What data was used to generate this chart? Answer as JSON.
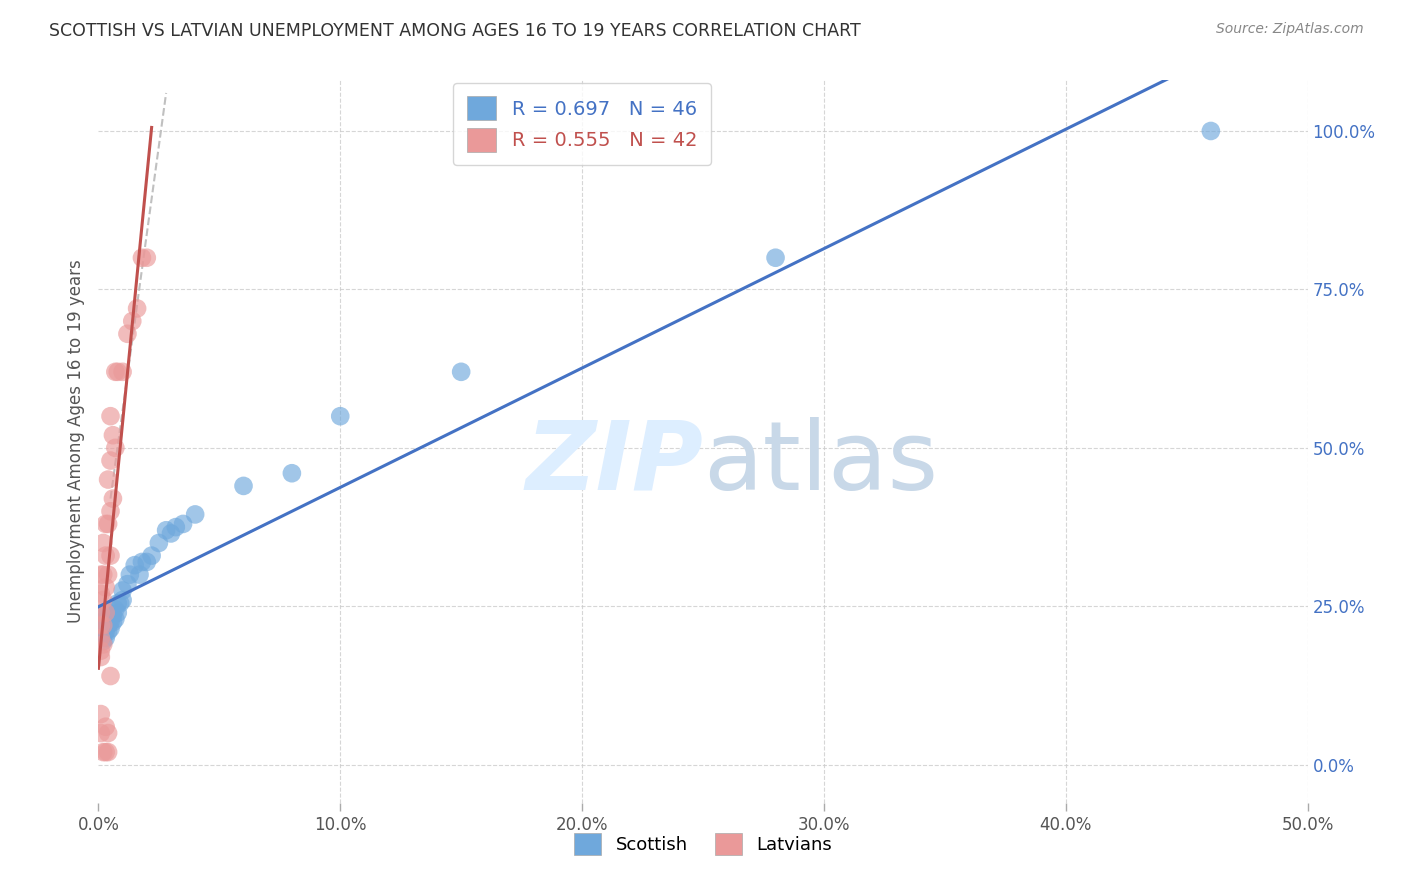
{
  "title": "SCOTTISH VS LATVIAN UNEMPLOYMENT AMONG AGES 16 TO 19 YEARS CORRELATION CHART",
  "source": "Source: ZipAtlas.com",
  "ylabel": "Unemployment Among Ages 16 to 19 years",
  "xlim": [
    0.0,
    0.5
  ],
  "ylim": [
    0.0,
    1.05
  ],
  "x_ticks": [
    0.0,
    0.1,
    0.2,
    0.3,
    0.4,
    0.5
  ],
  "x_tick_labels": [
    "0.0%",
    "10.0%",
    "20.0%",
    "30.0%",
    "40.0%",
    "50.0%"
  ],
  "y_ticks_right": [
    0.0,
    0.25,
    0.5,
    0.75,
    1.0
  ],
  "y_tick_labels_right": [
    "0.0%",
    "25.0%",
    "50.0%",
    "75.0%",
    "100.0%"
  ],
  "scottish_color": "#6fa8dc",
  "latvian_color": "#ea9999",
  "regression_line_scottish_color": "#4472c4",
  "regression_line_latvian_color": "#c0504d",
  "diagonal_color": "#c0c0c0",
  "scottish_R": 0.697,
  "scottish_N": 46,
  "latvian_R": 0.555,
  "latvian_N": 42,
  "scottish_x": [
    0.001,
    0.001,
    0.001,
    0.002,
    0.002,
    0.002,
    0.002,
    0.002,
    0.003,
    0.003,
    0.003,
    0.003,
    0.004,
    0.004,
    0.004,
    0.005,
    0.005,
    0.005,
    0.006,
    0.006,
    0.007,
    0.007,
    0.008,
    0.008,
    0.009,
    0.01,
    0.01,
    0.012,
    0.013,
    0.015,
    0.017,
    0.018,
    0.02,
    0.022,
    0.025,
    0.028,
    0.03,
    0.032,
    0.035,
    0.04,
    0.06,
    0.08,
    0.1,
    0.15,
    0.28,
    0.46
  ],
  "scottish_y": [
    0.2,
    0.21,
    0.22,
    0.195,
    0.205,
    0.215,
    0.225,
    0.235,
    0.2,
    0.21,
    0.22,
    0.23,
    0.21,
    0.22,
    0.24,
    0.215,
    0.225,
    0.235,
    0.225,
    0.235,
    0.23,
    0.245,
    0.24,
    0.255,
    0.255,
    0.26,
    0.275,
    0.285,
    0.3,
    0.315,
    0.3,
    0.32,
    0.32,
    0.33,
    0.35,
    0.37,
    0.365,
    0.375,
    0.38,
    0.395,
    0.44,
    0.46,
    0.55,
    0.62,
    0.8,
    1.0
  ],
  "latvian_x": [
    0.001,
    0.001,
    0.001,
    0.001,
    0.001,
    0.001,
    0.001,
    0.002,
    0.002,
    0.002,
    0.002,
    0.002,
    0.003,
    0.003,
    0.003,
    0.003,
    0.004,
    0.004,
    0.004,
    0.005,
    0.005,
    0.005,
    0.005,
    0.006,
    0.006,
    0.007,
    0.007,
    0.008,
    0.01,
    0.012,
    0.014,
    0.016,
    0.018,
    0.02,
    0.001,
    0.001,
    0.002,
    0.003,
    0.003,
    0.004,
    0.004,
    0.005
  ],
  "latvian_y": [
    0.17,
    0.18,
    0.2,
    0.22,
    0.24,
    0.27,
    0.3,
    0.19,
    0.22,
    0.26,
    0.3,
    0.35,
    0.24,
    0.28,
    0.33,
    0.38,
    0.3,
    0.38,
    0.45,
    0.33,
    0.4,
    0.48,
    0.55,
    0.42,
    0.52,
    0.5,
    0.62,
    0.62,
    0.62,
    0.68,
    0.7,
    0.72,
    0.8,
    0.8,
    0.05,
    0.08,
    0.02,
    0.06,
    0.02,
    0.05,
    0.02,
    0.14
  ],
  "watermark_zip": "ZIP",
  "watermark_atlas": "atlas",
  "background_color": "#ffffff",
  "grid_color": "#cccccc"
}
